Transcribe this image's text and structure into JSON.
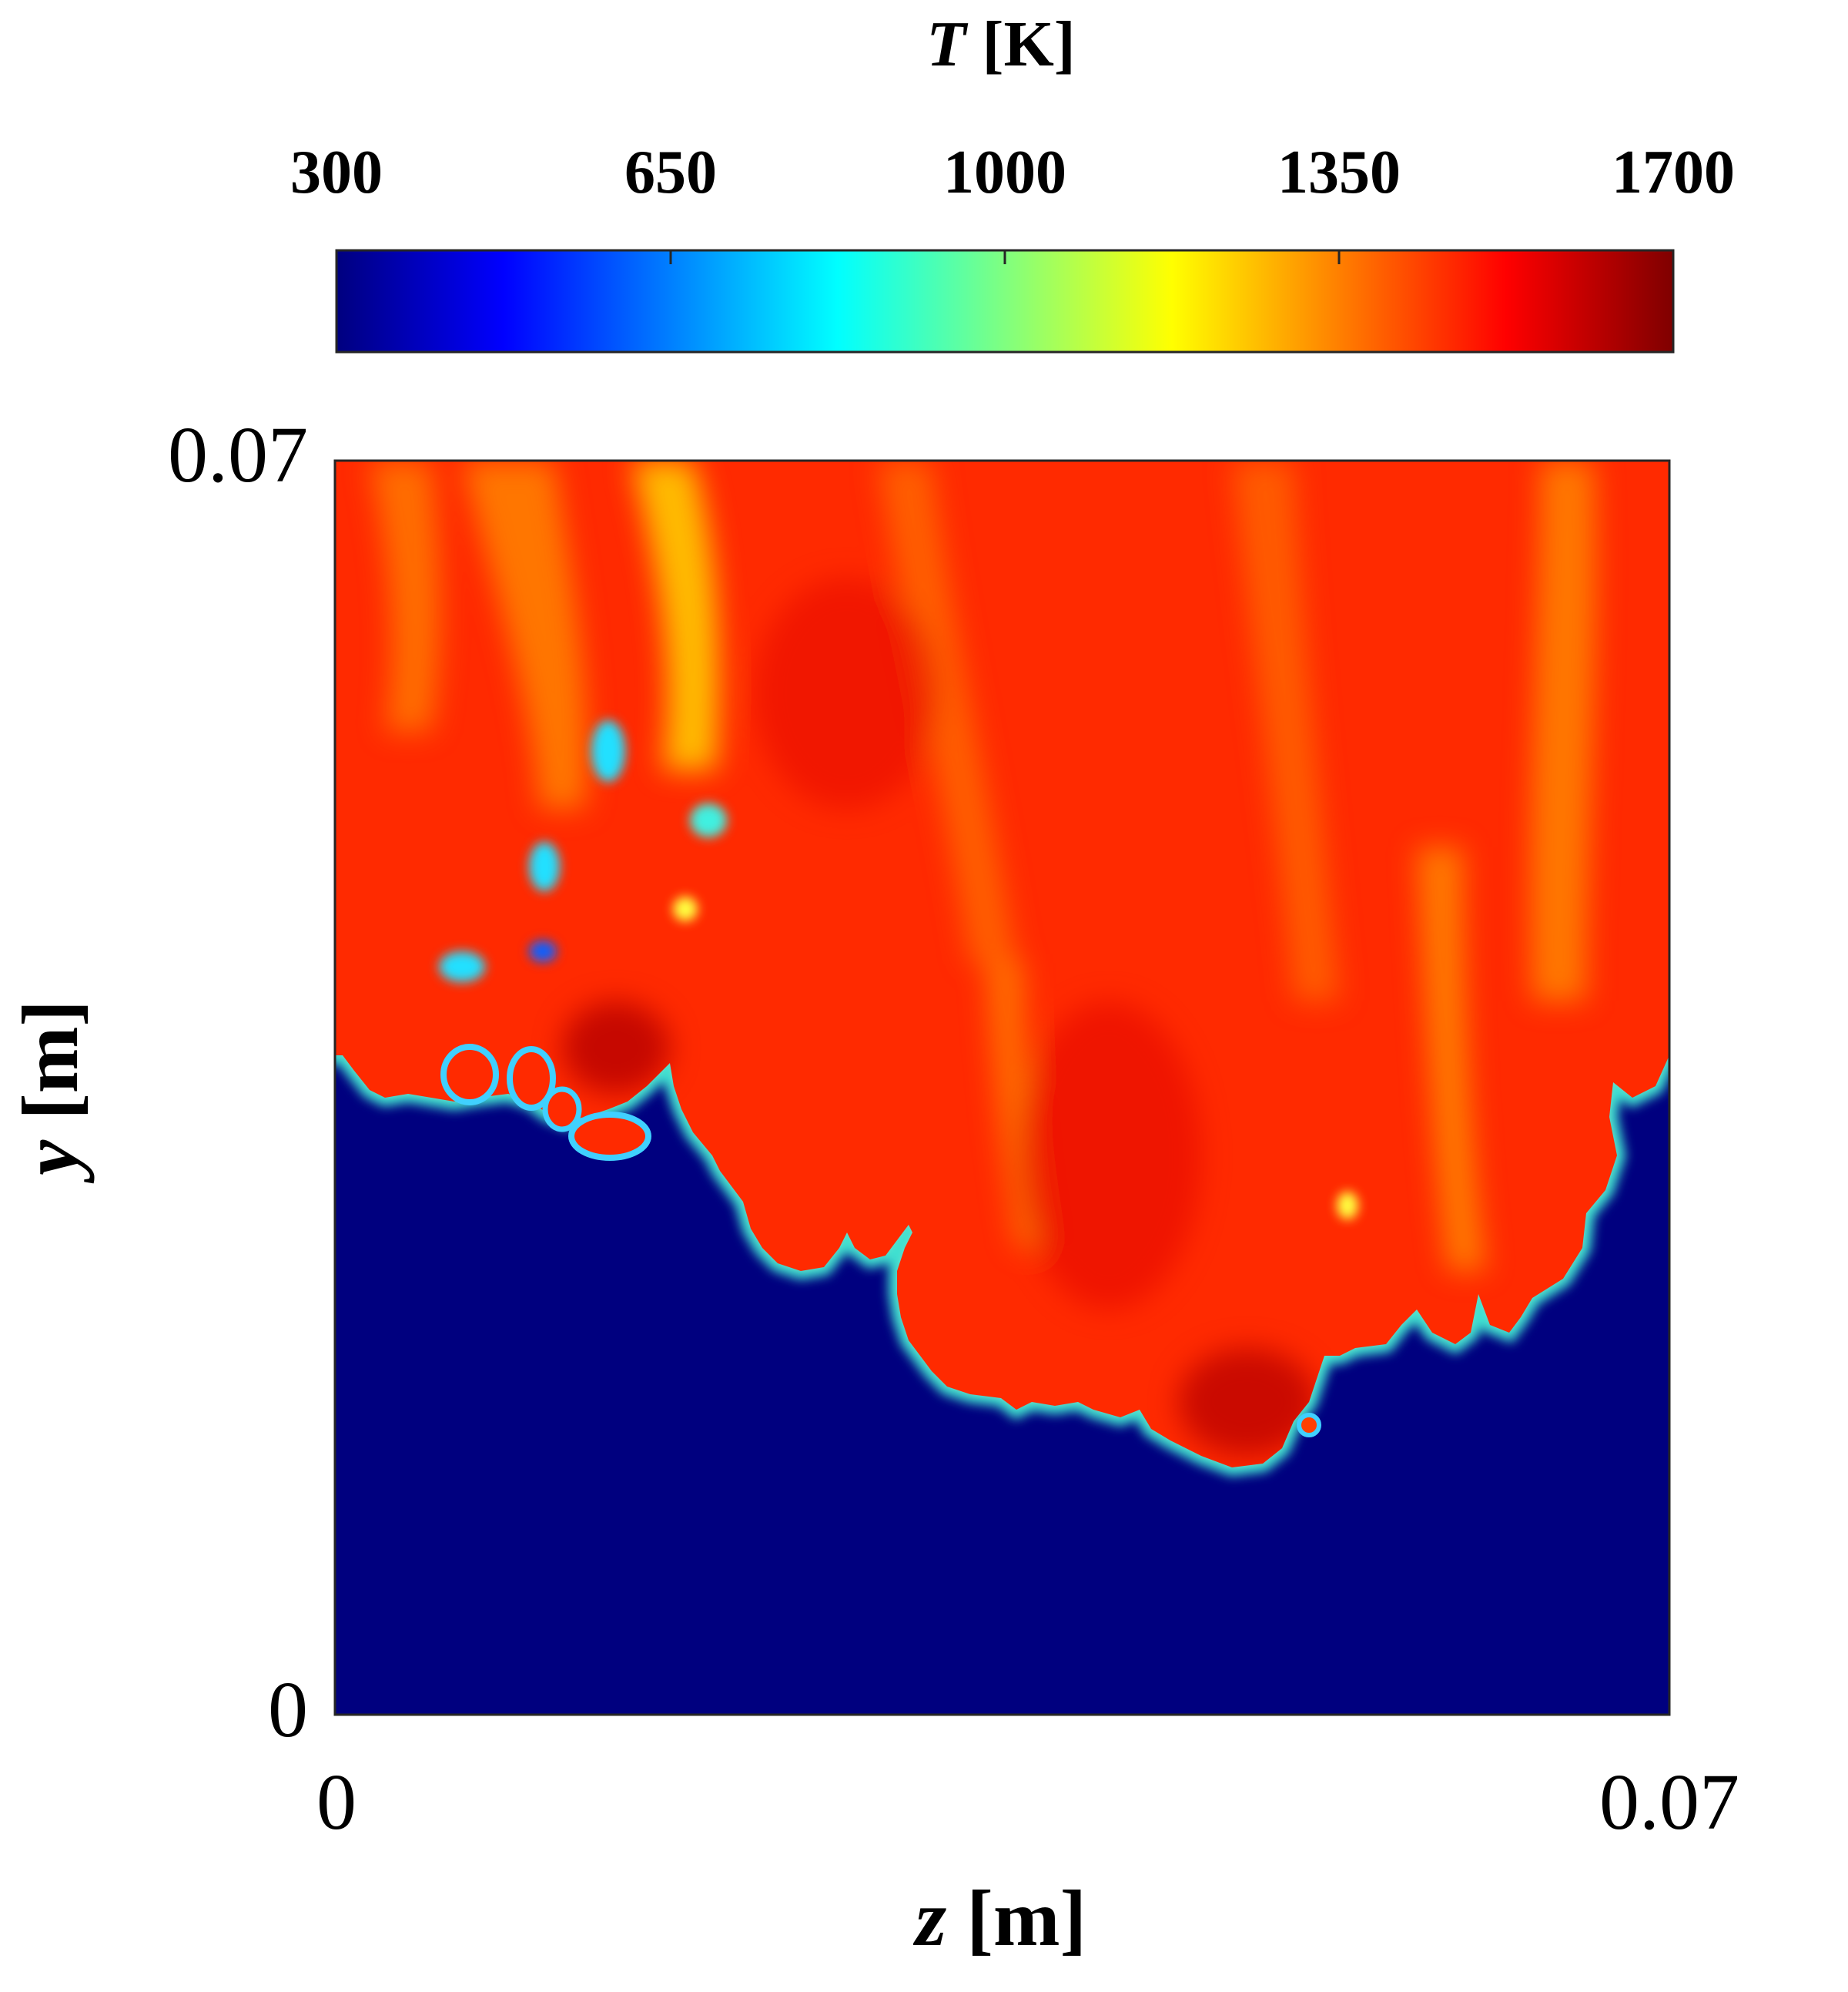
{
  "chart_data": {
    "type": "heatmap",
    "title": "",
    "xlabel": "z [m]",
    "ylabel": "y [m]",
    "xlim": [
      0,
      0.07
    ],
    "ylim": [
      0,
      0.07
    ],
    "x_ticks": [
      "0",
      "0.07"
    ],
    "y_ticks": [
      "0",
      "0.07"
    ],
    "colorbar": {
      "label": "T [K]",
      "colormap": "jet",
      "range": [
        300,
        1700
      ],
      "ticks": [
        "300",
        "650",
        "1000",
        "1350",
        "1700"
      ]
    },
    "field_description_values": {
      "unburnt_temperature": 300,
      "burnt_temperature_max": 1700,
      "front_height_at_left_edge": 0.0365,
      "front_height_at_right_edge": 0.0365,
      "front_lowest_point": [
        0.051,
        0.0138
      ]
    }
  },
  "colors": {
    "unburnt": "#00007f",
    "burnt": "#ff2a00",
    "hot_core": "#b80000"
  }
}
